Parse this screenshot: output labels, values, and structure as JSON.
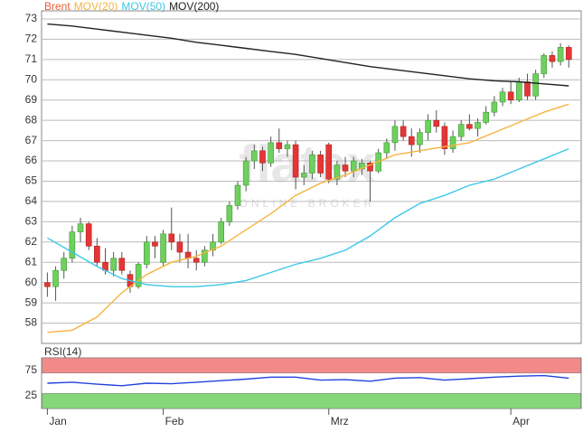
{
  "chart_data": [
    {
      "type": "candlestick",
      "name": "Brent",
      "color": "#e8603c",
      "up_color": "#6fcf5f",
      "down_color": "#e53535",
      "x": [
        0,
        1,
        2,
        3,
        4,
        5,
        6,
        7,
        8,
        9,
        10,
        11,
        12,
        13,
        14,
        15,
        16,
        17,
        18,
        19,
        20,
        21,
        22,
        23,
        24,
        25,
        26,
        27,
        28,
        29,
        30,
        31,
        32,
        33,
        34,
        35,
        36,
        37,
        38,
        39,
        40,
        41,
        42,
        43,
        44,
        45,
        46,
        47,
        48,
        49,
        50,
        51,
        52,
        53,
        54,
        55,
        56,
        57,
        58,
        59,
        60,
        61,
        62,
        63
      ],
      "open": [
        60.0,
        59.8,
        60.6,
        61.2,
        62.5,
        62.9,
        61.8,
        61.0,
        60.6,
        61.2,
        60.4,
        59.8,
        60.9,
        62.0,
        61.0,
        62.4,
        62.0,
        61.5,
        61.2,
        61.0,
        61.6,
        62.0,
        63.0,
        63.8,
        64.8,
        66.0,
        66.5,
        65.9,
        66.9,
        66.6,
        66.8,
        65.2,
        65.4,
        66.3,
        66.8,
        65.1,
        65.8,
        65.5,
        65.6,
        65.9,
        65.5,
        66.4,
        66.9,
        67.7,
        67.2,
        66.8,
        67.4,
        68.0,
        67.7,
        66.6,
        67.2,
        67.8,
        67.6,
        67.9,
        68.4,
        68.9,
        69.4,
        69.0,
        69.9,
        69.2,
        70.3,
        71.2,
        70.9,
        71.6
      ],
      "high": [
        60.5,
        60.8,
        61.5,
        62.8,
        63.2,
        63.0,
        62.2,
        61.7,
        61.5,
        61.5,
        60.6,
        61.0,
        62.3,
        62.3,
        62.6,
        63.7,
        62.4,
        62.4,
        61.6,
        61.8,
        62.4,
        63.2,
        64.0,
        65.0,
        66.2,
        66.8,
        66.7,
        67.2,
        67.6,
        67.0,
        67.0,
        65.8,
        66.5,
        66.5,
        66.9,
        66.0,
        66.2,
        66.2,
        66.1,
        66.0,
        66.6,
        67.1,
        68.0,
        68.0,
        67.6,
        67.6,
        68.3,
        68.5,
        67.9,
        67.5,
        68.0,
        68.3,
        68.1,
        68.7,
        69.2,
        69.6,
        69.9,
        70.1,
        70.3,
        70.5,
        71.3,
        71.4,
        71.8,
        71.7
      ],
      "low": [
        59.3,
        59.1,
        60.2,
        61.0,
        62.0,
        61.6,
        60.8,
        60.4,
        60.3,
        60.4,
        59.5,
        59.7,
        60.7,
        61.2,
        60.8,
        61.6,
        61.0,
        60.7,
        60.6,
        60.8,
        61.3,
        61.9,
        62.8,
        63.6,
        64.5,
        65.6,
        65.5,
        65.7,
        66.4,
        66.2,
        64.6,
        64.8,
        65.1,
        65.2,
        64.9,
        64.8,
        65.2,
        65.2,
        65.3,
        64.0,
        65.4,
        66.1,
        66.5,
        67.0,
        66.2,
        66.4,
        67.0,
        67.4,
        66.3,
        66.4,
        67.0,
        67.5,
        67.2,
        67.8,
        68.2,
        68.7,
        68.8,
        68.9,
        69.0,
        69.0,
        70.1,
        70.6,
        70.7,
        70.6
      ],
      "close": [
        59.8,
        60.6,
        61.2,
        62.5,
        62.9,
        61.8,
        61.0,
        60.6,
        61.2,
        60.6,
        59.8,
        60.9,
        62.0,
        61.8,
        62.4,
        62.0,
        61.5,
        61.2,
        61.0,
        61.6,
        62.0,
        63.0,
        63.8,
        64.8,
        66.0,
        66.5,
        65.9,
        66.9,
        66.6,
        66.8,
        65.2,
        65.4,
        66.3,
        65.4,
        65.1,
        65.8,
        65.5,
        66.0,
        65.9,
        65.5,
        66.4,
        66.9,
        67.7,
        67.2,
        66.8,
        67.4,
        68.0,
        67.7,
        66.6,
        67.2,
        67.8,
        67.6,
        67.9,
        68.4,
        68.9,
        69.4,
        69.0,
        69.9,
        69.2,
        70.3,
        71.2,
        70.9,
        71.6,
        71.0
      ],
      "series": [
        {
          "name": "MOV(20)",
          "color": "#f5b440",
          "x": [
            0,
            3,
            6,
            9,
            12,
            15,
            18,
            21,
            24,
            27,
            30,
            33,
            36,
            39,
            42,
            45,
            48,
            51,
            54,
            57,
            60,
            63
          ],
          "values": [
            57.55,
            57.65,
            58.3,
            59.5,
            60.4,
            61.0,
            61.3,
            61.8,
            62.6,
            63.4,
            64.3,
            64.9,
            65.3,
            65.8,
            66.3,
            66.5,
            66.7,
            66.9,
            67.4,
            67.9,
            68.4,
            68.8
          ]
        },
        {
          "name": "MOV(50)",
          "color": "#3cc8e8",
          "x": [
            0,
            3,
            6,
            9,
            12,
            15,
            18,
            21,
            24,
            27,
            30,
            33,
            36,
            39,
            42,
            45,
            48,
            51,
            54,
            57,
            60,
            63
          ],
          "values": [
            62.2,
            61.5,
            60.8,
            60.2,
            59.9,
            59.8,
            59.8,
            59.9,
            60.1,
            60.5,
            60.9,
            61.2,
            61.6,
            62.3,
            63.2,
            63.9,
            64.3,
            64.8,
            65.1,
            65.6,
            66.1,
            66.6
          ]
        },
        {
          "name": "MOV(200)",
          "color": "#222222",
          "x": [
            0,
            3,
            6,
            9,
            12,
            15,
            18,
            21,
            24,
            27,
            30,
            33,
            36,
            39,
            42,
            45,
            48,
            51,
            54,
            57,
            60,
            63
          ],
          "values": [
            72.75,
            72.65,
            72.5,
            72.35,
            72.2,
            72.05,
            71.85,
            71.7,
            71.55,
            71.4,
            71.25,
            71.05,
            70.85,
            70.65,
            70.5,
            70.35,
            70.2,
            70.05,
            69.95,
            69.9,
            69.8,
            69.7
          ]
        }
      ],
      "xlim": [
        -0.7,
        64.5
      ],
      "xticks": [
        {
          "value": 0,
          "label": "Jan"
        },
        {
          "value": 14,
          "label": "Feb"
        },
        {
          "value": 34,
          "label": "Mrz"
        },
        {
          "value": 56,
          "label": "Apr"
        }
      ],
      "ylim": [
        57,
        73.4
      ],
      "yticks": [
        58,
        59,
        60,
        61,
        62,
        63,
        64,
        65,
        66,
        67,
        68,
        69,
        70,
        71,
        72,
        73
      ],
      "grid": true,
      "watermark": [
        "flatex",
        "ONLINE BROKER"
      ]
    },
    {
      "type": "line",
      "title": "RSI(14)",
      "series": [
        {
          "name": "RSI(14)",
          "color": "#2244dd",
          "x": [
            0,
            3,
            6,
            9,
            12,
            15,
            18,
            21,
            24,
            27,
            30,
            33,
            36,
            39,
            42,
            45,
            48,
            51,
            54,
            57,
            60,
            63
          ],
          "values": [
            50,
            52,
            48,
            45,
            50,
            49,
            52,
            55,
            58,
            62,
            62,
            56,
            57,
            54,
            60,
            61,
            56,
            59,
            62,
            64,
            65,
            60
          ]
        }
      ],
      "bands": [
        {
          "from": 70,
          "to": 100,
          "color": "#f28a8a"
        },
        {
          "from": 0,
          "to": 30,
          "color": "#86d67a"
        }
      ],
      "xlim": [
        -0.7,
        64.5
      ],
      "ylim": [
        0,
        100
      ],
      "yticks": [
        25,
        75
      ]
    }
  ]
}
